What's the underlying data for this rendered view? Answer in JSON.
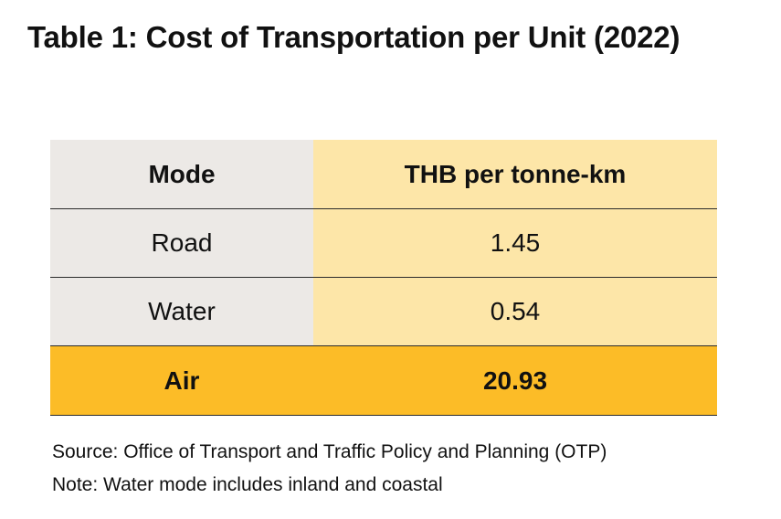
{
  "title": "Table 1: Cost of Transportation per Unit (2022)",
  "chart_data": {
    "type": "table",
    "title": "Table 1: Cost of Transportation per Unit (2022)",
    "columns": [
      "Mode",
      "THB per tonne-km"
    ],
    "rows": [
      {
        "mode": "Road",
        "value": "1.45"
      },
      {
        "mode": "Water",
        "value": "0.54"
      },
      {
        "mode": "Air",
        "value": "20.93",
        "highlighted": true
      }
    ],
    "colors": {
      "mode_column_bg": "#ece9e6",
      "value_column_bg": "#fde6a8",
      "highlight_row_bg": "#fcbc27"
    }
  },
  "footer": {
    "source": "Source: Office of Transport and Traffic Policy and Planning  (OTP)",
    "note": "Note: Water mode includes inland and coastal"
  }
}
